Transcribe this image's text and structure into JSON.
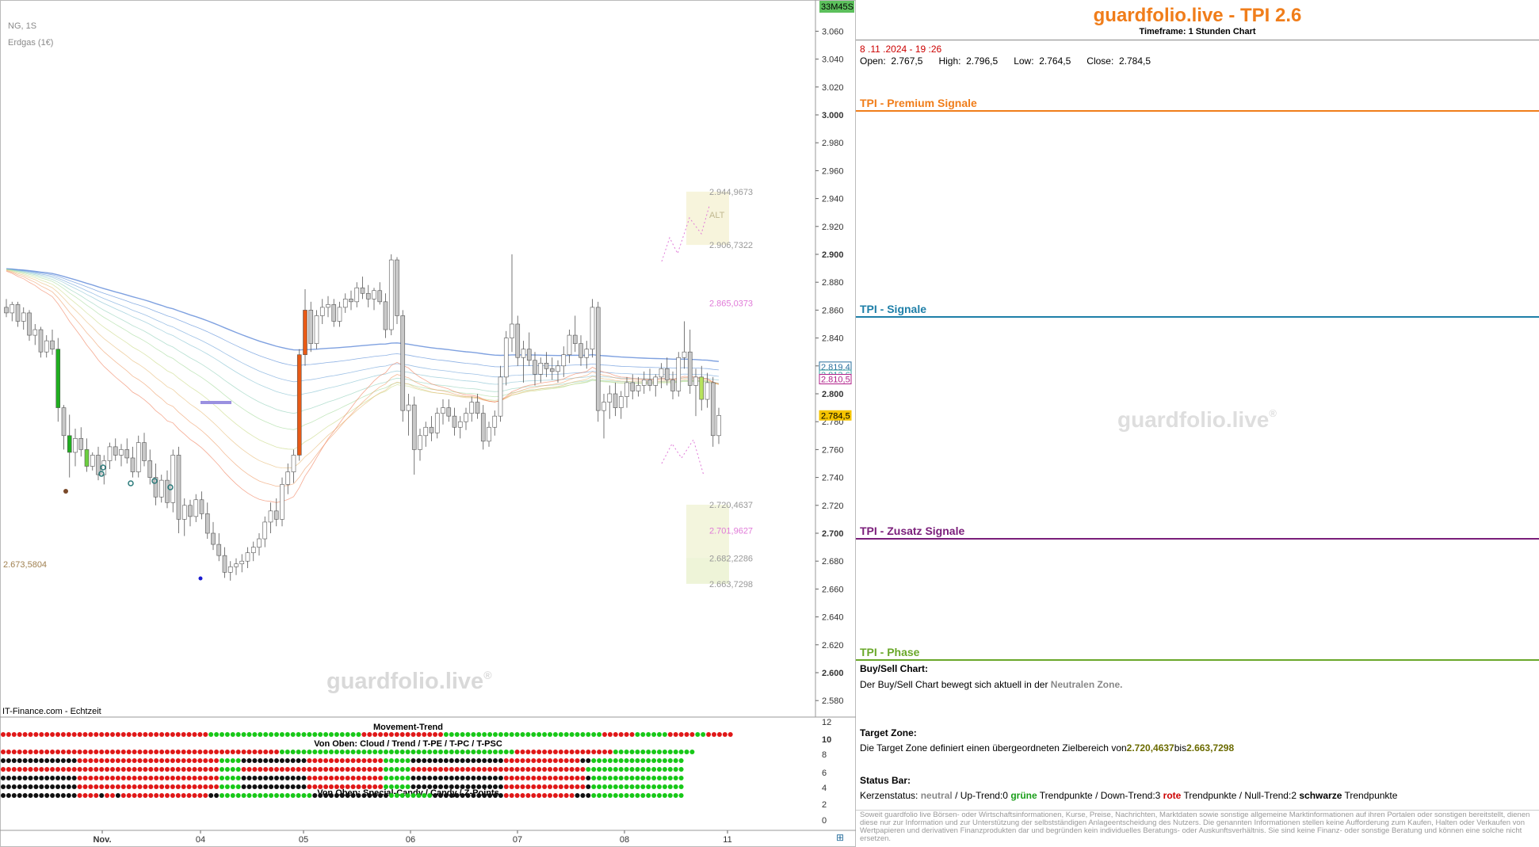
{
  "chart_data": {
    "type": "candlestick",
    "symbol": "NG, 1S",
    "name": "Erdgas (1€)",
    "timer_badge": "33M45S",
    "source": "IT-Finance.com - Echtzeit",
    "watermark": "guardfolio.live",
    "y_axis": {
      "range": [
        2.57,
        3.07
      ],
      "ticks": [
        "3.060",
        "3.040",
        "3.020",
        "3.000",
        "2.980",
        "2.960",
        "2.940",
        "2.920",
        "2.900",
        "2.880",
        "2.860",
        "2.840",
        "2.820",
        "2.800",
        "2.780",
        "2.760",
        "2.740",
        "2.720",
        "2.700",
        "2.680",
        "2.660",
        "2.640",
        "2.620",
        "2.600",
        "2.580"
      ],
      "bold_ticks": [
        "3.000",
        "2.900",
        "2.800",
        "2.700",
        "2.600"
      ]
    },
    "x_axis": {
      "labels": [
        "Nov.",
        "04",
        "05",
        "06",
        "07",
        "08",
        "11"
      ]
    },
    "price_tags": [
      {
        "value": "2.819,4",
        "price": 2.8194,
        "color": "#2a6f9e"
      },
      {
        "value": "2.813,6",
        "price": 2.8136,
        "color": "#39a0a0"
      },
      {
        "value": "2.810,5",
        "price": 2.8105,
        "color": "#b0208a"
      },
      {
        "value": "2.784,5",
        "price": 2.7845,
        "color": "#f5c400"
      }
    ],
    "target_levels": [
      {
        "value": "2.944,9673",
        "price": 2.9449673,
        "color": "#999999"
      },
      {
        "value": "2.906,7322",
        "price": 2.9067322,
        "color": "#999999"
      },
      {
        "value": "2.865,0373",
        "price": 2.8650373,
        "color": "#e07ad8"
      },
      {
        "value": "2.720,4637",
        "price": 2.7204637,
        "color": "#999999"
      },
      {
        "value": "2.701,9627",
        "price": 2.7019627,
        "color": "#e07ad8"
      },
      {
        "value": "2.682,2286",
        "price": 2.6822286,
        "color": "#999999"
      },
      {
        "value": "2.663,7298",
        "price": 2.6637298,
        "color": "#999999"
      }
    ],
    "zone_label": "ALT",
    "left_level": {
      "value": "2.673,5804",
      "price": 2.6735804
    },
    "candles": [
      [
        2.862,
        2.868,
        2.855,
        2.858
      ],
      [
        2.858,
        2.866,
        2.852,
        2.864
      ],
      [
        2.864,
        2.866,
        2.848,
        2.852
      ],
      [
        2.852,
        2.862,
        2.846,
        2.858
      ],
      [
        2.858,
        2.86,
        2.838,
        2.842
      ],
      [
        2.842,
        2.85,
        2.835,
        2.846
      ],
      [
        2.846,
        2.848,
        2.826,
        2.83
      ],
      [
        2.83,
        2.842,
        2.826,
        2.838
      ],
      [
        2.838,
        2.846,
        2.828,
        2.832
      ],
      [
        2.832,
        2.84,
        2.78,
        2.79
      ],
      [
        2.79,
        2.792,
        2.76,
        2.77
      ],
      [
        2.77,
        2.785,
        2.74,
        2.758
      ],
      [
        2.758,
        2.775,
        2.748,
        2.768
      ],
      [
        2.768,
        2.776,
        2.755,
        2.76
      ],
      [
        2.76,
        2.768,
        2.744,
        2.748
      ],
      [
        2.748,
        2.758,
        2.745,
        2.756
      ],
      [
        2.756,
        2.762,
        2.738,
        2.742
      ],
      [
        2.742,
        2.756,
        2.735,
        2.752
      ],
      [
        2.752,
        2.765,
        2.746,
        2.762
      ],
      [
        2.762,
        2.768,
        2.752,
        2.756
      ],
      [
        2.756,
        2.764,
        2.748,
        2.76
      ],
      [
        2.76,
        2.768,
        2.75,
        2.754
      ],
      [
        2.754,
        2.762,
        2.74,
        2.744
      ],
      [
        2.744,
        2.77,
        2.74,
        2.765
      ],
      [
        2.765,
        2.772,
        2.748,
        2.752
      ],
      [
        2.752,
        2.76,
        2.735,
        2.74
      ],
      [
        2.74,
        2.75,
        2.72,
        2.726
      ],
      [
        2.726,
        2.742,
        2.722,
        2.738
      ],
      [
        2.738,
        2.745,
        2.718,
        2.722
      ],
      [
        2.722,
        2.76,
        2.715,
        2.756
      ],
      [
        2.756,
        2.762,
        2.7,
        2.71
      ],
      [
        2.71,
        2.725,
        2.698,
        2.72
      ],
      [
        2.72,
        2.724,
        2.705,
        2.712
      ],
      [
        2.712,
        2.728,
        2.708,
        2.724
      ],
      [
        2.724,
        2.73,
        2.71,
        2.714
      ],
      [
        2.714,
        2.722,
        2.696,
        2.7
      ],
      [
        2.7,
        2.708,
        2.688,
        2.692
      ],
      [
        2.692,
        2.7,
        2.68,
        2.684
      ],
      [
        2.684,
        2.69,
        2.668,
        2.672
      ],
      [
        2.672,
        2.68,
        2.666,
        2.676
      ],
      [
        2.676,
        2.682,
        2.67,
        2.678
      ],
      [
        2.678,
        2.685,
        2.672,
        2.68
      ],
      [
        2.68,
        2.69,
        2.675,
        2.686
      ],
      [
        2.686,
        2.694,
        2.68,
        2.69
      ],
      [
        2.69,
        2.7,
        2.684,
        2.696
      ],
      [
        2.696,
        2.712,
        2.69,
        2.708
      ],
      [
        2.708,
        2.722,
        2.7,
        2.716
      ],
      [
        2.716,
        2.725,
        2.705,
        2.71
      ],
      [
        2.71,
        2.74,
        2.705,
        2.735
      ],
      [
        2.735,
        2.75,
        2.728,
        2.744
      ],
      [
        2.744,
        2.76,
        2.736,
        2.756
      ],
      [
        2.756,
        2.832,
        2.752,
        2.828
      ],
      [
        2.828,
        2.875,
        2.82,
        2.86
      ],
      [
        2.86,
        2.866,
        2.83,
        2.836
      ],
      [
        2.836,
        2.86,
        2.832,
        2.856
      ],
      [
        2.856,
        2.868,
        2.85,
        2.862
      ],
      [
        2.862,
        2.87,
        2.855,
        2.864
      ],
      [
        2.864,
        2.868,
        2.848,
        2.852
      ],
      [
        2.852,
        2.866,
        2.848,
        2.862
      ],
      [
        2.862,
        2.872,
        2.858,
        2.868
      ],
      [
        2.868,
        2.874,
        2.86,
        2.866
      ],
      [
        2.866,
        2.88,
        2.862,
        2.876
      ],
      [
        2.876,
        2.884,
        2.868,
        2.872
      ],
      [
        2.872,
        2.878,
        2.862,
        2.868
      ],
      [
        2.868,
        2.876,
        2.86,
        2.874
      ],
      [
        2.874,
        2.88,
        2.864,
        2.866
      ],
      [
        2.866,
        2.872,
        2.84,
        2.846
      ],
      [
        2.846,
        2.9,
        2.842,
        2.896
      ],
      [
        2.896,
        2.898,
        2.85,
        2.856
      ],
      [
        2.856,
        2.86,
        2.78,
        2.788
      ],
      [
        2.788,
        2.8,
        2.77,
        2.792
      ],
      [
        2.792,
        2.798,
        2.742,
        2.76
      ],
      [
        2.76,
        2.775,
        2.752,
        2.77
      ],
      [
        2.77,
        2.78,
        2.762,
        2.776
      ],
      [
        2.776,
        2.784,
        2.766,
        2.772
      ],
      [
        2.772,
        2.79,
        2.768,
        2.786
      ],
      [
        2.786,
        2.796,
        2.778,
        2.79
      ],
      [
        2.79,
        2.796,
        2.78,
        2.784
      ],
      [
        2.784,
        2.79,
        2.77,
        2.776
      ],
      [
        2.776,
        2.784,
        2.768,
        2.78
      ],
      [
        2.78,
        2.79,
        2.774,
        2.786
      ],
      [
        2.786,
        2.798,
        2.78,
        2.794
      ],
      [
        2.794,
        2.8,
        2.782,
        2.786
      ],
      [
        2.786,
        2.792,
        2.76,
        2.766
      ],
      [
        2.766,
        2.78,
        2.762,
        2.776
      ],
      [
        2.776,
        2.788,
        2.77,
        2.784
      ],
      [
        2.784,
        2.82,
        2.78,
        2.812
      ],
      [
        2.812,
        2.845,
        2.806,
        2.84
      ],
      [
        2.84,
        2.9,
        2.83,
        2.85
      ],
      [
        2.85,
        2.856,
        2.82,
        2.826
      ],
      [
        2.826,
        2.838,
        2.808,
        2.832
      ],
      [
        2.832,
        2.844,
        2.82,
        2.824
      ],
      [
        2.824,
        2.83,
        2.806,
        2.814
      ],
      [
        2.814,
        2.826,
        2.808,
        2.822
      ],
      [
        2.822,
        2.83,
        2.812,
        2.818
      ],
      [
        2.818,
        2.826,
        2.81,
        2.816
      ],
      [
        2.816,
        2.824,
        2.808,
        2.82
      ],
      [
        2.82,
        2.834,
        2.812,
        2.828
      ],
      [
        2.828,
        2.846,
        2.822,
        2.842
      ],
      [
        2.842,
        2.856,
        2.83,
        2.836
      ],
      [
        2.836,
        2.842,
        2.82,
        2.826
      ],
      [
        2.826,
        2.838,
        2.818,
        2.832
      ],
      [
        2.832,
        2.868,
        2.826,
        2.862
      ],
      [
        2.862,
        2.866,
        2.78,
        2.788
      ],
      [
        2.788,
        2.8,
        2.768,
        2.794
      ],
      [
        2.794,
        2.806,
        2.782,
        2.8
      ],
      [
        2.8,
        2.808,
        2.784,
        2.79
      ],
      [
        2.79,
        2.802,
        2.782,
        2.798
      ],
      [
        2.798,
        2.812,
        2.79,
        2.808
      ],
      [
        2.808,
        2.814,
        2.796,
        2.802
      ],
      [
        2.802,
        2.812,
        2.798,
        2.806
      ],
      [
        2.806,
        2.816,
        2.8,
        2.81
      ],
      [
        2.81,
        2.818,
        2.802,
        2.806
      ],
      [
        2.806,
        2.814,
        2.798,
        2.812
      ],
      [
        2.812,
        2.822,
        2.804,
        2.818
      ],
      [
        2.818,
        2.826,
        2.806,
        2.81
      ],
      [
        2.81,
        2.816,
        2.796,
        2.802
      ],
      [
        2.802,
        2.83,
        2.798,
        2.826
      ],
      [
        2.826,
        2.852,
        2.818,
        2.83
      ],
      [
        2.83,
        2.846,
        2.8,
        2.806
      ],
      [
        2.806,
        2.818,
        2.784,
        2.812
      ],
      [
        2.812,
        2.82,
        2.788,
        2.796
      ],
      [
        2.796,
        2.815,
        2.79,
        2.808
      ],
      [
        2.808,
        2.812,
        2.762,
        2.77
      ],
      [
        2.77,
        2.79,
        2.764,
        2.7845
      ]
    ],
    "highlight_candles": [
      {
        "index": 9,
        "color": "#1fae1f"
      },
      {
        "index": 11,
        "color": "#1fae1f"
      },
      {
        "index": 14,
        "color": "#6ccf3f"
      },
      {
        "index": 51,
        "color": "#e85a16"
      },
      {
        "index": 52,
        "color": "#e85a16"
      },
      {
        "index": 121,
        "color": "#b7e35d"
      }
    ],
    "gauge_rows": {
      "panel_title": "Movement-Trend",
      "subtitle_top": "Von Oben: Cloud / Trend / T-PE / T-PC / T-PSC",
      "subtitle_bottom": "Von Oben: Special-Candy / Candy / Z-Points",
      "y_ticks": [
        "12",
        "10",
        "8",
        "6",
        "4",
        "2",
        "0"
      ],
      "bold_ticks": [
        "10"
      ],
      "rows": [
        "RRRRRRRRRRRRRRRRRRRRRRRRRRRRRRRRRRRRRRGGGGGGGGGGGGGGGGGGGGGGGGGGGGRRRRRRRRRRRRRRRGGGGGGGGGGGGGGGGGGGGGGGGGGGGGRRRRRRGGGGGGRRRRRGGRRRRR",
        "RRRRRRRRRRRRRRRRRRRRRRRRRRRRRRRRRRRRRRRRRRRRRRRRRRRGGGGGGGGGGGGGGGGGGGGGGGGGGGGGGGGGGGGGGGGGGGRRRRRRRRRRRRRRRRRRGGGGGGGGGGGGGGG",
        "KKKKKKKKKKKKKKRRRRRRRRRRRRRRRRRRRRRRRRRRGGGGKKKKKKKKKKKKRRRRRRRRRRRRRRGGGGGKKKKKKKKKKKKKKKKKRRRRRRRRRRRRRRKKGGGGGGGGGGGGGGGGG",
        "RRRRRRRRRRRRRRRRRRRRRRRRRRRRRRRRRRRRRRRRGGGGRRRRRRRRRRRRRRRRRRRRRRRRRRGGGGGRRRRRRRRRRRRRRRRRRRRRRRRRRRRRRRRGGGGGGGGGGGGGGGGGG",
        "KKKKKKKKKKKKKKRRRRRRRRRRRRRRRRRRRRRRRRRRGGGGKKKKKKKKKKKKRRRRRRRRRRRRRRGGGGGKKKKKKKKKKKKKKKKKRRRRRRRRRRRRRRRKGGGGGGGGGGGGGGGGG",
        "KKKKKKKKKKKKKKRRRRRRRRRRRRRRRRRRRRRRRRRRGGGGKKKKKKKKKKKKRRRRRRRRRRRRRRGGGGGKKKKKKKKKKKKKKKKKRRRRRRRRRRRRRRRKGGGGGGGGGGGGGGGGG",
        "KKKKKKKKKKKKKKRRRRKRRKRRRRRRRRRRRRRRRRKKGGGGGGGGGGGGGGGGGKKKKKKKKKKKKKKGGGGGGGGKKKKKKKKKKKKKRRRRRRRRRRRRRKKKGGGGGGGGGGGGGGGGG"
      ]
    }
  },
  "side": {
    "title": "guardfolio.live - TPI 2.6",
    "timeframe_label": "Timeframe:",
    "timeframe_value": "1 Stunden Chart",
    "date": "8 .11 .2024  - 19 :26",
    "open_label": "Open:",
    "open": "2.767,5",
    "high_label": "High:",
    "high": "2.796,5",
    "low_label": "Low:",
    "low": "2.764,5",
    "close_label": "Close:",
    "close": "2.784,5",
    "sec_premium": "TPI - Premium Signale",
    "sec_signale": "TPI - Signale",
    "sec_zusatz": "TPI - Zusatz Signale",
    "sec_phase": "TPI - Phase",
    "watermark": "guardfolio.live",
    "buysell_label": "Buy/Sell Chart:",
    "buysell_text": "Der Buy/Sell Chart bewegt sich aktuell in der",
    "buysell_value": "Neutralen Zone.",
    "target_label": "Target Zone:",
    "target_text": "Die Target Zone definiert einen übergeordneten Zielbereich von",
    "target_from": "2.720,4637",
    "target_bis": "bis",
    "target_to": "2.663,7298",
    "status_label": "Status Bar:",
    "status_prefix": "Kerzenstatus:",
    "status_neutral": "neutral",
    "status_up": " / Up-Trend:0",
    "status_green": "grüne",
    "status_tp1": "Trendpunkte",
    "status_down": " / Down-Trend:3",
    "status_red": "rote",
    "status_tp2": "Trendpunkte",
    "status_null": " / Null-Trend:2",
    "status_black": "schwarze",
    "status_tp3": "Trendpunkte",
    "disclaimer": "Soweit guardfolio live Börsen- oder Wirtschaftsinformationen, Kurse, Preise, Nachrichten, Marktdaten sowie sonstige allgemeine Marktinformationen auf ihren Portalen oder sonstigen bereitstellt, dienen diese nur zur Information und zur Unterstützung der selbstständigen Anlageentscheidung des Nutzers. Die genannten Informationen stellen keine Aufforderung zum Kaufen, Halten oder Verkaufen von Wertpapieren und derivativen Finanzprodukten dar und begründen kein individuelles Beratungs- oder Auskunftsverhältnis. Sie sind keine Finanz- oder sonstige Beratung und können eine solche nicht ersetzen.",
    "colors": {
      "premium": "#f07d1a",
      "signale": "#1e7fa8",
      "zusatz": "#7a1e7a",
      "phase": "#6aa82a"
    }
  }
}
